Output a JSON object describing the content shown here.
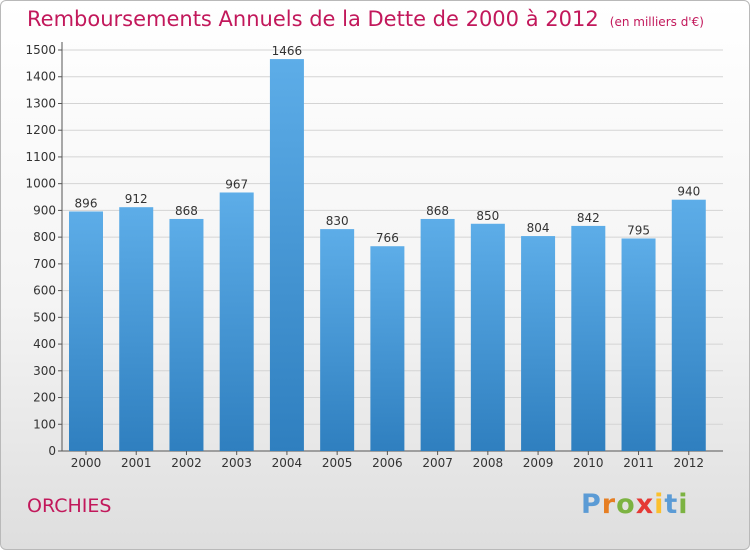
{
  "header": {
    "title": "Remboursements Annuels de la Dette de 2000 à 2012",
    "unit": "(en milliers d'€)"
  },
  "commune": "ORCHIES",
  "logo": {
    "text": "Proxiti",
    "letters": [
      {
        "ch": "P",
        "color": "#5b9bd5"
      },
      {
        "ch": "r",
        "color": "#e67e22"
      },
      {
        "ch": "o",
        "color": "#7cb342"
      },
      {
        "ch": "x",
        "color": "#e53935"
      },
      {
        "ch": "i",
        "color": "#fbc02d"
      },
      {
        "ch": "t",
        "color": "#5b9bd5"
      },
      {
        "ch": "i",
        "color": "#7cb342"
      }
    ]
  },
  "colors": {
    "bar_top": "#5dade8",
    "bar_bottom": "#2f7fbf",
    "title": "#c2185b"
  },
  "chart_data": {
    "type": "bar",
    "title": "Remboursements Annuels de la Dette de 2000 à 2012",
    "categories": [
      "2000",
      "2001",
      "2002",
      "2003",
      "2004",
      "2005",
      "2006",
      "2007",
      "2008",
      "2009",
      "2010",
      "2011",
      "2012"
    ],
    "values": [
      896,
      912,
      868,
      967,
      1466,
      830,
      766,
      868,
      850,
      804,
      842,
      795,
      940
    ],
    "ylim": [
      0,
      1500
    ],
    "yticks": [
      0,
      100,
      200,
      300,
      400,
      500,
      600,
      700,
      800,
      900,
      1000,
      1100,
      1200,
      1300,
      1400,
      1500
    ],
    "grid": true,
    "xlabel": "",
    "ylabel": ""
  }
}
